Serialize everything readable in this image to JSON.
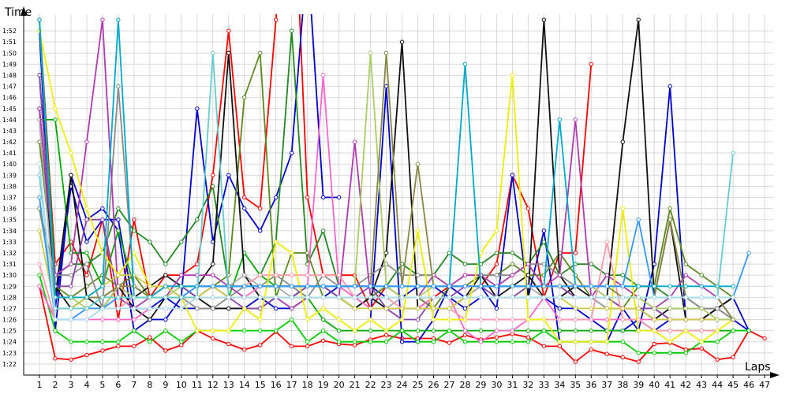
{
  "chart_data": {
    "type": "line",
    "xlabel": "Laps",
    "ylabel": "Time",
    "x": [
      1,
      2,
      3,
      4,
      5,
      6,
      7,
      8,
      9,
      10,
      11,
      12,
      13,
      14,
      15,
      16,
      17,
      18,
      19,
      20,
      21,
      22,
      23,
      24,
      25,
      26,
      27,
      28,
      29,
      30,
      31,
      32,
      33,
      34,
      35,
      36,
      37,
      38,
      39,
      40,
      41,
      42,
      43,
      44,
      45,
      46,
      47
    ],
    "x_tick_labels": [
      "1",
      "2",
      "3",
      "4",
      "5",
      "6",
      "7",
      "8",
      "9",
      "10",
      "11",
      "12",
      "13",
      "14",
      "15",
      "16",
      "17",
      "18",
      "19",
      "20",
      "21",
      "22",
      "23",
      "24",
      "25",
      "26",
      "27",
      "28",
      "29",
      "30",
      "31",
      "32",
      "33",
      "34",
      "35",
      "36",
      "37",
      "38",
      "39",
      "40",
      "41",
      "42",
      "43",
      "44",
      "45",
      "46",
      "47"
    ],
    "y_tick_labels": [
      "1:22",
      "1:23",
      "1:24",
      "1:25",
      "1:26",
      "1:27",
      "1:28",
      "1:29",
      "1:30",
      "1:31",
      "1:32",
      "1:33",
      "1:34",
      "1:35",
      "1:36",
      "1:37",
      "1:38",
      "1:39",
      "1:40",
      "1:41",
      "1:42",
      "1:43",
      "1:44",
      "1:45",
      "1:46",
      "1:47",
      "1:48",
      "1:49",
      "1:50",
      "1:51",
      "1:52"
    ],
    "ylim_seconds": [
      81,
      113.5
    ],
    "grid": true,
    "legend": "none",
    "series": [
      {
        "color": "#ff0000",
        "values": [
          89,
          82.5,
          82.4,
          82.8,
          83.2,
          83.6,
          83.6,
          84.4,
          83.2,
          83.7,
          85.0,
          84.3,
          83.8,
          83.3,
          83.7,
          84.9,
          83.6,
          83.6,
          84.1,
          83.8,
          83.7,
          84.2,
          84.6,
          84.3,
          84.3,
          84.3,
          83.9,
          84.6,
          84.2,
          84.4,
          84.7,
          84.4,
          83.6,
          83.6,
          82.2,
          83.3,
          82.9,
          82.6,
          82.2,
          83.8,
          83.9,
          83.3,
          83.4,
          82.4,
          82.6,
          85.0,
          84.3
        ]
      },
      {
        "color": "#ff0000",
        "values": [
          113,
          91,
          93,
          90,
          95,
          86,
          95,
          88,
          90,
          90,
          91,
          99,
          112,
          97,
          96,
          113,
          130,
          97,
          90,
          90,
          90,
          87,
          89,
          88,
          88,
          88,
          89,
          89,
          89,
          91,
          99,
          96,
          88,
          92,
          92,
          109,
          null,
          null,
          null,
          null,
          null,
          null,
          null,
          null,
          null,
          null,
          null
        ]
      },
      {
        "color": "#0000cc",
        "values": [
          112,
          85,
          99,
          95,
          96,
          94,
          85,
          86,
          86,
          88,
          105,
          93,
          99,
          96,
          94,
          97,
          101,
          119,
          97,
          97,
          null,
          86,
          107,
          84,
          84,
          86,
          89,
          88,
          89,
          87,
          99,
          88,
          94,
          84,
          84,
          84,
          84,
          87,
          85,
          91,
          107,
          86,
          86,
          86,
          86,
          85,
          null
        ]
      },
      {
        "color": "#0000cc",
        "values": [
          105,
          87,
          98,
          93,
          95,
          95,
          87,
          87,
          88,
          87,
          87,
          87,
          87,
          87,
          88,
          87,
          87,
          88,
          88,
          89,
          89,
          89,
          88,
          88,
          89,
          89,
          88,
          87,
          88,
          88,
          88,
          88,
          88,
          87,
          87,
          86,
          85,
          85,
          86,
          85,
          86,
          86,
          86,
          87,
          88,
          85,
          null
        ]
      },
      {
        "color": "#00aa00",
        "values": [
          104,
          104,
          92,
          92,
          89,
          94,
          89,
          88,
          89,
          88,
          88,
          88,
          88,
          92,
          90,
          89,
          89,
          88,
          86,
          85,
          85,
          85,
          85,
          85,
          85,
          85,
          85,
          85,
          85,
          85,
          85,
          85,
          85,
          85,
          85,
          85,
          85,
          85,
          85,
          85,
          85,
          85,
          85,
          85,
          85,
          85,
          null
        ]
      },
      {
        "color": "#00cc00",
        "values": [
          90,
          85,
          84,
          84,
          84,
          84,
          85,
          84,
          85,
          84,
          85,
          85,
          85,
          85,
          85,
          85,
          86,
          84,
          85,
          84,
          84,
          84,
          84,
          85,
          84,
          84,
          85,
          84,
          84,
          84,
          84,
          84,
          85,
          84,
          84,
          84,
          84,
          84,
          83,
          83,
          83,
          83,
          84,
          84,
          85,
          85,
          null
        ]
      },
      {
        "color": "#228822",
        "values": [
          113,
          90,
          91,
          91,
          92,
          96,
          94,
          93,
          91,
          93,
          95,
          98,
          89,
          89,
          90,
          93,
          112,
          91,
          94,
          89,
          88,
          88,
          89,
          91,
          90,
          90,
          92,
          91,
          91,
          92,
          92,
          91,
          93,
          90,
          91,
          91,
          90,
          90,
          89,
          89,
          88,
          88,
          87,
          87,
          86,
          null,
          null
        ]
      },
      {
        "color": "#5b8a1e",
        "values": [
          102,
          89,
          88,
          89,
          90,
          89,
          90,
          88,
          88,
          88,
          88,
          89,
          90,
          106,
          110,
          88,
          92,
          92,
          88,
          88,
          87,
          88,
          89,
          88,
          88,
          87,
          89,
          89,
          90,
          90,
          91,
          90,
          90,
          92,
          90,
          88,
          87,
          87,
          89,
          89,
          96,
          91,
          90,
          89,
          88,
          null,
          null
        ]
      },
      {
        "color": "#111111",
        "values": [
          105,
          88,
          99,
          88,
          88,
          89,
          87,
          86,
          88,
          88,
          89,
          91,
          110,
          90,
          88,
          88,
          88,
          88,
          88,
          88,
          88,
          88,
          92,
          111,
          87,
          88,
          88,
          88,
          90,
          88,
          88,
          88,
          113,
          90,
          88,
          88,
          88,
          102,
          113,
          88,
          95,
          86,
          86,
          87,
          88,
          null,
          null
        ]
      },
      {
        "color": "#111111",
        "values": [
          108,
          89,
          87,
          88,
          87,
          89,
          88,
          89,
          90,
          89,
          88,
          87,
          87,
          87,
          87,
          88,
          88,
          89,
          89,
          88,
          87,
          88,
          87,
          87,
          87,
          87,
          87,
          88,
          88,
          88,
          89,
          90,
          88,
          88,
          89,
          88,
          87,
          87,
          87,
          86,
          87,
          87,
          87,
          87,
          88,
          null,
          null
        ]
      },
      {
        "color": "#8a8a8a",
        "values": [
          96,
          90,
          90,
          91,
          87,
          107,
          89,
          88,
          89,
          88,
          87,
          87,
          88,
          89,
          89,
          90,
          89,
          88,
          90,
          89,
          89,
          90,
          91,
          90,
          90,
          90,
          89,
          90,
          90,
          90,
          90,
          91,
          91,
          90,
          89,
          89,
          88,
          88,
          88,
          88,
          88,
          88,
          87,
          87,
          86,
          null,
          null
        ]
      },
      {
        "color": "#aaaaaa",
        "values": [
          104,
          87,
          87,
          87,
          87,
          88,
          88,
          88,
          89,
          88,
          89,
          89,
          89,
          90,
          89,
          89,
          88,
          88,
          88,
          88,
          88,
          87,
          87,
          88,
          88,
          88,
          88,
          88,
          89,
          88,
          88,
          89,
          88,
          88,
          88,
          88,
          87,
          87,
          87,
          87,
          86,
          86,
          86,
          86,
          86,
          null,
          null
        ]
      },
      {
        "color": "#b03ab0",
        "values": [
          105,
          90,
          91,
          102,
          113,
          88,
          87,
          88,
          88,
          90,
          90,
          90,
          89,
          88,
          88,
          88,
          87,
          88,
          88,
          88,
          102,
          88,
          88,
          88,
          88,
          90,
          89,
          90,
          90,
          89,
          90,
          91,
          89,
          90,
          104,
          88,
          90,
          89,
          88,
          87,
          88,
          90,
          89,
          88,
          86,
          null,
          null
        ]
      },
      {
        "color": "#8844aa",
        "values": [
          108,
          89,
          89,
          95,
          95,
          88,
          88,
          88,
          89,
          89,
          88,
          89,
          88,
          87,
          87,
          88,
          88,
          89,
          89,
          88,
          88,
          89,
          87,
          86,
          86,
          88,
          88,
          89,
          89,
          88,
          88,
          89,
          89,
          89,
          88,
          88,
          88,
          87,
          87,
          87,
          86,
          86,
          86,
          86,
          86,
          null,
          null
        ]
      },
      {
        "color": "#ff66cc",
        "values": [
          89,
          86,
          86,
          86,
          86,
          86,
          86,
          87,
          87,
          87,
          88,
          88,
          88,
          88,
          89,
          89,
          89,
          89,
          108,
          89,
          88,
          87,
          87,
          87,
          87,
          88,
          88,
          85,
          84,
          85,
          85,
          86,
          88,
          86,
          86,
          86,
          86,
          86,
          86,
          86,
          86,
          86,
          86,
          86,
          null,
          null,
          null
        ]
      },
      {
        "color": "#ff99aa",
        "values": [
          91,
          86,
          86,
          87,
          87,
          87,
          88,
          88,
          89,
          89,
          89,
          89,
          89,
          89,
          90,
          90,
          90,
          90,
          90,
          90,
          88,
          88,
          88,
          87,
          87,
          87,
          87,
          86,
          86,
          86,
          86,
          86,
          86,
          86,
          86,
          86,
          93,
          86,
          86,
          85,
          85,
          85,
          85,
          85,
          null,
          null,
          null
        ]
      },
      {
        "color": "#eeee00",
        "values": [
          112,
          105,
          101,
          96,
          92,
          90,
          92,
          89,
          89,
          88,
          85,
          85,
          85,
          87,
          86,
          93,
          92,
          86,
          87,
          86,
          85,
          86,
          85,
          86,
          94,
          86,
          86,
          86,
          92,
          94,
          108,
          86,
          86,
          84,
          84,
          84,
          84,
          96,
          85,
          85,
          84,
          85,
          84,
          85,
          86,
          null,
          null
        ]
      },
      {
        "color": "#cccc44",
        "values": [
          94,
          87,
          87,
          88,
          89,
          90,
          90,
          89,
          89,
          88,
          88,
          89,
          88,
          88,
          88,
          88,
          88,
          88,
          88,
          88,
          87,
          87,
          87,
          87,
          87,
          87,
          87,
          88,
          88,
          88,
          88,
          88,
          88,
          88,
          87,
          87,
          87,
          87,
          87,
          86,
          86,
          86,
          86,
          86,
          86,
          null,
          null
        ]
      },
      {
        "color": "#aacc66",
        "values": [
          113,
          88,
          88,
          87,
          87,
          89,
          88,
          88,
          88,
          89,
          89,
          89,
          89,
          89,
          89,
          89,
          89,
          89,
          89,
          89,
          89,
          110,
          89,
          88,
          88,
          89,
          89,
          89,
          89,
          89,
          89,
          89,
          89,
          89,
          89,
          89,
          88,
          88,
          88,
          87,
          87,
          87,
          87,
          86,
          86,
          null,
          null
        ]
      },
      {
        "color": "#888844",
        "values": [
          96,
          88,
          88,
          88,
          88,
          89,
          89,
          88,
          89,
          89,
          89,
          89,
          89,
          89,
          89,
          89,
          89,
          89,
          89,
          89,
          89,
          89,
          110,
          89,
          100,
          89,
          89,
          89,
          89,
          89,
          89,
          89,
          89,
          89,
          89,
          89,
          89,
          88,
          88,
          88,
          95,
          88,
          88,
          88,
          86,
          null,
          null
        ]
      },
      {
        "color": "#00aacc",
        "values": [
          113,
          88,
          88,
          88,
          89,
          113,
          88,
          88,
          89,
          89,
          89,
          89,
          89,
          89,
          89,
          89,
          89,
          89,
          89,
          89,
          89,
          89,
          89,
          89,
          89,
          89,
          89,
          109,
          89,
          89,
          89,
          89,
          89,
          104,
          89,
          89,
          89,
          89,
          89,
          89,
          89,
          89,
          89,
          89,
          89,
          null,
          null
        ]
      },
      {
        "color": "#3399ff",
        "values": [
          97,
          86,
          86,
          87,
          87,
          88,
          88,
          88,
          88,
          88,
          89,
          89,
          89,
          89,
          89,
          89,
          89,
          89,
          89,
          89,
          89,
          89,
          89,
          89,
          89,
          89,
          89,
          89,
          89,
          89,
          89,
          89,
          89,
          89,
          89,
          89,
          89,
          89,
          95,
          88,
          88,
          88,
          88,
          88,
          88,
          92,
          null
        ]
      },
      {
        "color": "#66cccc",
        "values": [
          99,
          87,
          87,
          87,
          88,
          88,
          88,
          88,
          88,
          88,
          88,
          110,
          88,
          88,
          88,
          88,
          88,
          88,
          88,
          88,
          88,
          88,
          88,
          88,
          88,
          88,
          88,
          88,
          88,
          88,
          88,
          88,
          88,
          88,
          88,
          88,
          88,
          88,
          88,
          88,
          88,
          88,
          88,
          88,
          101,
          null,
          null
        ]
      },
      {
        "color": "#aaddee",
        "values": [
          100,
          86,
          86,
          86,
          87,
          87,
          87,
          87,
          87,
          87,
          88,
          88,
          88,
          88,
          88,
          88,
          88,
          88,
          88,
          88,
          88,
          88,
          88,
          88,
          88,
          88,
          88,
          88,
          88,
          88,
          88,
          88,
          88,
          88,
          88,
          88,
          88,
          88,
          88,
          88,
          88,
          88,
          88,
          88,
          88,
          null,
          null
        ]
      }
    ]
  }
}
